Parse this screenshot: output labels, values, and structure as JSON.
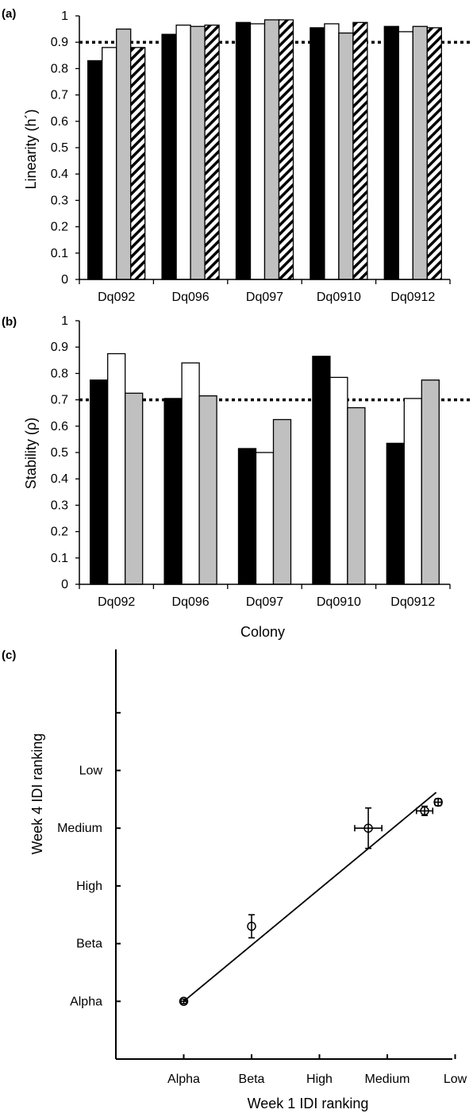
{
  "chart_data": [
    {
      "panel_label": "(a)",
      "type": "bar",
      "categories": [
        "Dq092",
        "Dq096",
        "Dq097",
        "Dq0910",
        "Dq0912"
      ],
      "ylabel": "Linearity (h´)",
      "ylim": [
        0,
        1
      ],
      "yticks": [
        "0",
        "0.1",
        "0.2",
        "0.3",
        "0.4",
        "0.5",
        "0.6",
        "0.7",
        "0.8",
        "0.9",
        "1"
      ],
      "reference_line": 0.9,
      "series_styles": [
        {
          "fill": "#000000",
          "pattern": "solid"
        },
        {
          "fill": "#ffffff",
          "pattern": "solid"
        },
        {
          "fill": "#c0c0c0",
          "pattern": "solid"
        },
        {
          "fill": "#ffffff",
          "pattern": "hatched"
        }
      ],
      "series": [
        {
          "values": [
            0.83,
            0.93,
            0.975,
            0.955,
            0.96
          ]
        },
        {
          "values": [
            0.88,
            0.965,
            0.97,
            0.97,
            0.94
          ]
        },
        {
          "values": [
            0.95,
            0.96,
            0.985,
            0.935,
            0.96
          ]
        },
        {
          "values": [
            0.88,
            0.965,
            0.985,
            0.975,
            0.955
          ]
        }
      ]
    },
    {
      "panel_label": "(b)",
      "type": "bar",
      "categories": [
        "Dq092",
        "Dq096",
        "Dq097",
        "Dq0910",
        "Dq0912"
      ],
      "xlabel": "Colony",
      "ylabel": "Stability (ρ)",
      "ylim": [
        0,
        1
      ],
      "yticks": [
        "0",
        "0.1",
        "0.2",
        "0.3",
        "0.4",
        "0.5",
        "0.6",
        "0.7",
        "0.8",
        "0.9",
        "1"
      ],
      "reference_line": 0.7,
      "series_styles": [
        {
          "fill": "#000000",
          "pattern": "solid"
        },
        {
          "fill": "#ffffff",
          "pattern": "solid"
        },
        {
          "fill": "#c0c0c0",
          "pattern": "solid"
        }
      ],
      "series": [
        {
          "values": [
            0.775,
            0.705,
            0.515,
            0.865,
            0.535
          ]
        },
        {
          "values": [
            0.875,
            0.84,
            0.5,
            0.785,
            0.705
          ]
        },
        {
          "values": [
            0.725,
            0.715,
            0.625,
            0.67,
            0.775
          ]
        }
      ]
    },
    {
      "panel_label": "(c)",
      "type": "scatter",
      "xlabel": "Week 1 IDI ranking",
      "ylabel": "Week 4 IDI ranking",
      "categories": [
        "Alpha",
        "Beta",
        "High",
        "Medium",
        "Low"
      ],
      "xlim": [
        0,
        5
      ],
      "ylim": [
        0,
        6
      ],
      "points": [
        {
          "x": 1.0,
          "y": 1.0,
          "xerr": 0.04,
          "yerr": 0.04
        },
        {
          "x": 2.0,
          "y": 2.3,
          "xerr": 0.0,
          "yerr": 0.2
        },
        {
          "x": 3.72,
          "y": 4.0,
          "xerr": 0.2,
          "yerr": 0.35
        },
        {
          "x": 4.55,
          "y": 4.3,
          "xerr": 0.12,
          "yerr": 0.08
        },
        {
          "x": 4.75,
          "y": 4.45,
          "xerr": 0.05,
          "yerr": 0.06
        }
      ],
      "fit_line": {
        "x": [
          1.0,
          4.72
        ],
        "y": [
          1.0,
          4.62
        ]
      }
    }
  ]
}
